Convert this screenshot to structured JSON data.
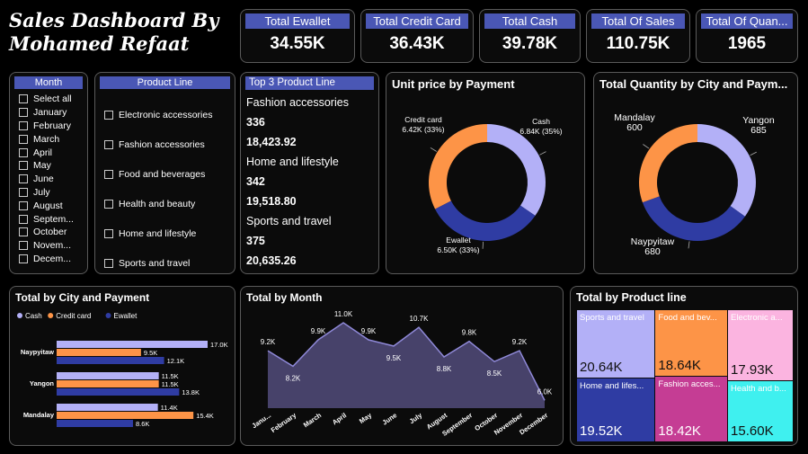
{
  "header": {
    "title_line1": "Sales Dashboard By",
    "title_line2": "Mohamed Refaat"
  },
  "kpis": [
    {
      "label": "Total Ewallet",
      "value": "34.55K"
    },
    {
      "label": "Total Credit Card",
      "value": "36.43K"
    },
    {
      "label": "Total Cash",
      "value": "39.78K"
    },
    {
      "label": "Total Of Sales",
      "value": "110.75K"
    },
    {
      "label": "Total Of Quan...",
      "value": "1965"
    }
  ],
  "month_slicer": {
    "title": "Month",
    "items": [
      "Select all",
      "January",
      "February",
      "March",
      "April",
      "May",
      "June",
      "July",
      "August",
      "Septem...",
      "October",
      "Novem...",
      "Decem..."
    ]
  },
  "product_slicer": {
    "title": "Product Line",
    "items": [
      "Electronic accessories",
      "Fashion accessories",
      "Food and beverages",
      "Health and beauty",
      "Home and lifestyle",
      "Sports and travel"
    ]
  },
  "top3": {
    "title": "Top 3 Product Line",
    "lines": [
      "Fashion accessories",
      "336",
      "18,423.92",
      "Home and lifestyle",
      "342",
      "19,518.80",
      "Sports and travel",
      "375",
      "20,635.26"
    ]
  },
  "chart_data": [
    {
      "type": "pie",
      "title": "Unit price by Payment",
      "labels": [
        "Cash",
        "Ewallet",
        "Credit card"
      ],
      "values": [
        6.84,
        6.5,
        6.42
      ],
      "value_labels": [
        "6.84K (35%)",
        "6.50K (33%)",
        "6.42K (33%)"
      ],
      "colors": [
        "#b3b0f7",
        "#2f3ca3",
        "#fd9447"
      ]
    },
    {
      "type": "pie",
      "title": "Total Quantity by City and Paym...",
      "labels": [
        "Yangon",
        "Naypyitaw",
        "Mandalay"
      ],
      "values": [
        685,
        680,
        600
      ],
      "value_labels": [
        "685",
        "680",
        "600"
      ],
      "colors": [
        "#b3b0f7",
        "#2f3ca3",
        "#fd9447"
      ]
    },
    {
      "type": "bar",
      "orientation": "horizontal",
      "title": "Total by City and Payment",
      "categories": [
        "Naypyitaw",
        "Yangon",
        "Mandalay"
      ],
      "series": [
        {
          "name": "Cash",
          "color": "#b3b0f7",
          "values": [
            17.0,
            11.5,
            11.4
          ],
          "labels": [
            "17.0K",
            "11.5K",
            "11.4K"
          ]
        },
        {
          "name": "Credit card",
          "color": "#fd9447",
          "values": [
            9.5,
            11.5,
            15.4
          ],
          "labels": [
            "9.5K",
            "11.5K",
            "15.4K"
          ]
        },
        {
          "name": "Ewallet",
          "color": "#2f3ca3",
          "values": [
            12.1,
            13.8,
            8.6
          ],
          "labels": [
            "12.1K",
            "13.8K",
            "8.6K"
          ]
        }
      ],
      "xlim": [
        0,
        17
      ],
      "legend": "top-left"
    },
    {
      "type": "area",
      "title": "Total by Month",
      "categories": [
        "Janu...",
        "February",
        "March",
        "April",
        "May",
        "June",
        "July",
        "August",
        "September",
        "October",
        "November",
        "December"
      ],
      "values": [
        9.2,
        8.2,
        9.9,
        11.0,
        9.9,
        9.5,
        10.7,
        8.8,
        9.8,
        8.5,
        9.2,
        6.0
      ],
      "labels": [
        "9.2K",
        "8.2K",
        "9.9K",
        "11.0K",
        "9.9K",
        "9.5K",
        "10.7K",
        "8.8K",
        "9.8K",
        "8.5K",
        "9.2K",
        "6.0K"
      ],
      "ylim": [
        5.5,
        11.0
      ],
      "color": "#8f89d8"
    },
    {
      "type": "treemap",
      "title": "Total by Product line",
      "items": [
        {
          "name": "Sports and travel",
          "value": 20.64,
          "label": "20.64K",
          "color": "#b3b0f7"
        },
        {
          "name": "Home and lifes...",
          "value": 19.52,
          "label": "19.52K",
          "color": "#2f3ca3"
        },
        {
          "name": "Food and bev...",
          "value": 18.64,
          "label": "18.64K",
          "color": "#fd9447"
        },
        {
          "name": "Fashion acces...",
          "value": 18.42,
          "label": "18.42K",
          "color": "#c53d94"
        },
        {
          "name": "Electronic a...",
          "value": 17.93,
          "label": "17.93K",
          "color": "#fbb4e0"
        },
        {
          "name": "Health and b...",
          "value": 15.6,
          "label": "15.60K",
          "color": "#3ff0ef"
        }
      ]
    }
  ]
}
